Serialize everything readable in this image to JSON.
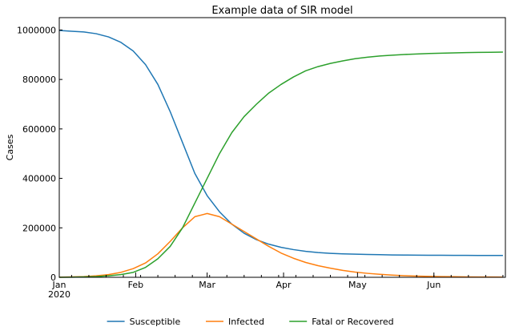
{
  "chart_data": {
    "type": "line",
    "title": "Example data of SIR model",
    "xlabel": "",
    "ylabel": "Cases",
    "x_date_range": [
      "2020-01-01",
      "2020-06-30"
    ],
    "ylim": [
      0,
      1050000
    ],
    "x_ticks": [
      {
        "date": "2020-01-01",
        "label": "Jan",
        "sublabel": "2020"
      },
      {
        "date": "2020-02-01",
        "label": "Feb",
        "sublabel": ""
      },
      {
        "date": "2020-03-01",
        "label": "Mar",
        "sublabel": ""
      },
      {
        "date": "2020-04-01",
        "label": "Apr",
        "sublabel": ""
      },
      {
        "date": "2020-05-01",
        "label": "May",
        "sublabel": ""
      },
      {
        "date": "2020-06-01",
        "label": "Jun",
        "sublabel": ""
      }
    ],
    "y_ticks": [
      {
        "value": 0,
        "label": "0"
      },
      {
        "value": 200000,
        "label": "200000"
      },
      {
        "value": 400000,
        "label": "400000"
      },
      {
        "value": 600000,
        "label": "600000"
      },
      {
        "value": 800000,
        "label": "800000"
      },
      {
        "value": 1000000,
        "label": "1000000"
      }
    ],
    "grid": false,
    "legend_position": "bottom",
    "x": [
      "2020-01-01",
      "2020-01-06",
      "2020-01-11",
      "2020-01-16",
      "2020-01-21",
      "2020-01-26",
      "2020-01-31",
      "2020-02-05",
      "2020-02-10",
      "2020-02-15",
      "2020-02-20",
      "2020-02-25",
      "2020-03-01",
      "2020-03-06",
      "2020-03-11",
      "2020-03-16",
      "2020-03-21",
      "2020-03-26",
      "2020-03-31",
      "2020-04-05",
      "2020-04-10",
      "2020-04-15",
      "2020-04-20",
      "2020-04-25",
      "2020-04-30",
      "2020-05-05",
      "2020-05-10",
      "2020-05-15",
      "2020-05-20",
      "2020-05-25",
      "2020-05-30",
      "2020-06-04",
      "2020-06-09",
      "2020-06-14",
      "2020-06-19",
      "2020-06-24",
      "2020-06-29"
    ],
    "series": [
      {
        "name": "Susceptible",
        "color": "#1f77b4",
        "values": [
          998000,
          995000,
          992000,
          985000,
          972000,
          950000,
          915000,
          860000,
          780000,
          670000,
          545000,
          420000,
          330000,
          265000,
          215000,
          178000,
          152000,
          134000,
          121000,
          112000,
          105000,
          100000,
          97000,
          95000,
          93500,
          92500,
          91500,
          90500,
          90000,
          89500,
          89200,
          89000,
          88800,
          88600,
          88400,
          88300,
          88200
        ]
      },
      {
        "name": "Infected",
        "color": "#ff7f0e",
        "values": [
          500,
          1500,
          3000,
          6000,
          11000,
          20000,
          35000,
          58000,
          95000,
          145000,
          200000,
          245000,
          258000,
          245000,
          215000,
          185000,
          155000,
          125000,
          98000,
          77000,
          60000,
          47000,
          37000,
          28000,
          21000,
          16000,
          12000,
          9000,
          6500,
          5000,
          3800,
          3000,
          2300,
          1800,
          1400,
          1100,
          900
        ]
      },
      {
        "name": "Fatal or Recovered",
        "color": "#2ca02c",
        "values": [
          0,
          500,
          1500,
          3000,
          6000,
          11000,
          20000,
          40000,
          75000,
          125000,
          200000,
          300000,
          400000,
          500000,
          585000,
          650000,
          700000,
          745000,
          780000,
          810000,
          835000,
          852000,
          865000,
          875000,
          884000,
          890000,
          895000,
          898000,
          901000,
          903000,
          905000,
          906000,
          907500,
          908500,
          909500,
          910000,
          910500
        ]
      }
    ]
  }
}
